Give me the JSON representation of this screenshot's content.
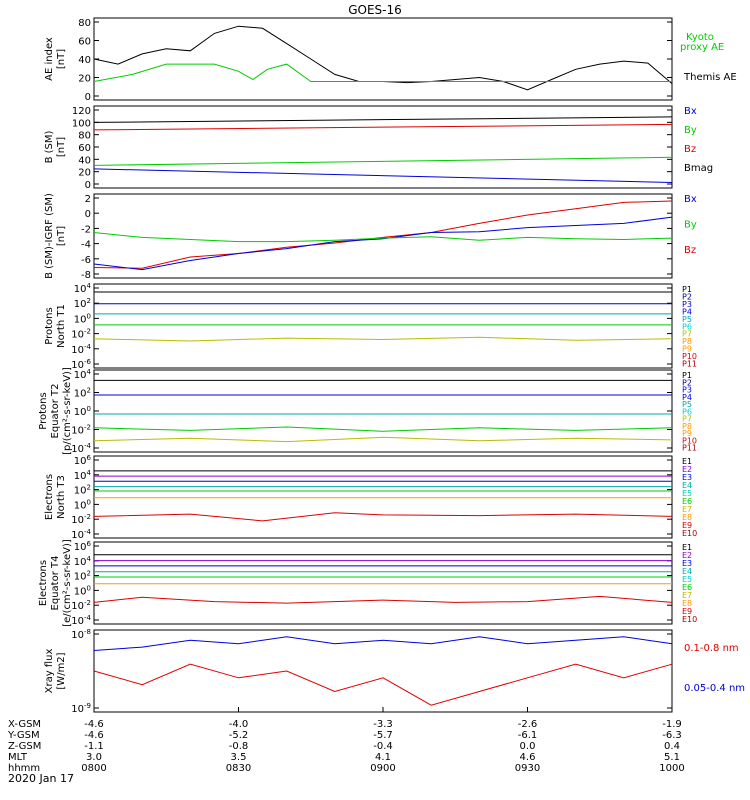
{
  "title": "GOES-16",
  "date": "2020 Jan 17",
  "time_ticks": [
    "0800",
    "0830",
    "0900",
    "0930",
    "1000"
  ],
  "ephemeris": [
    {
      "label": "X-GSM",
      "values": [
        "-4.6",
        "-4.0",
        "-3.3",
        "-2.6",
        "-1.9"
      ]
    },
    {
      "label": "Y-GSM",
      "values": [
        "-4.6",
        "-5.2",
        "-5.7",
        "-6.1",
        "-6.3"
      ]
    },
    {
      "label": "Z-GSM",
      "values": [
        "-1.1",
        "-0.8",
        "-0.4",
        "0.0",
        "0.4"
      ]
    },
    {
      "label": "MLT",
      "values": [
        "3.0",
        "3.5",
        "4.1",
        "4.6",
        "5.1"
      ]
    },
    {
      "label": "hhmm",
      "values": [
        "0800",
        "0830",
        "0900",
        "0930",
        "1000"
      ]
    }
  ],
  "colors": {
    "black": "#000000",
    "blue": "#0000dd",
    "green": "#00cc00",
    "red": "#dd0000",
    "teal": "#00aaaa",
    "navy": "#000088",
    "yellow": "#bbbb00",
    "orange": "#ff9900",
    "purple": "#8800cc",
    "cyan": "#00cccc",
    "darkred": "#aa0000"
  },
  "chart_data": [
    {
      "type": "line",
      "id": "ae",
      "ylabel": [
        "AE index",
        "[nT]"
      ],
      "yticks": [
        "80",
        "60",
        "40",
        "20",
        "0"
      ],
      "ylim": [
        0,
        80
      ],
      "legend": [
        "Kyoto",
        "proxy AE",
        "Themis AE"
      ],
      "series": [
        {
          "name": "Themis AE",
          "color": "#000000",
          "x": [
            0,
            5,
            10,
            15,
            20,
            25,
            30,
            35,
            40,
            45,
            50,
            55,
            60,
            65,
            70,
            75,
            80,
            85,
            90,
            95,
            100,
            105,
            110,
            115,
            120
          ],
          "values": [
            40,
            35,
            45,
            50,
            48,
            65,
            72,
            70,
            55,
            40,
            25,
            18,
            18,
            17,
            18,
            20,
            22,
            18,
            10,
            20,
            30,
            35,
            38,
            36,
            16
          ]
        },
        {
          "name": "Kyoto proxy AE",
          "color": "#00cc00",
          "x": [
            0,
            8,
            15,
            25,
            30,
            33,
            36,
            40,
            45,
            120
          ],
          "values": [
            18,
            25,
            35,
            35,
            28,
            20,
            30,
            35,
            18,
            18
          ]
        }
      ]
    },
    {
      "type": "line",
      "id": "bsm",
      "ylabel": [
        "B (SM)",
        "[nT]"
      ],
      "yticks": [
        "120",
        "100",
        "80",
        "60",
        "40",
        "20",
        "0"
      ],
      "ylim": [
        0,
        120
      ],
      "legend": [
        "Bx",
        "By",
        "Bz",
        "Bmag"
      ],
      "series": [
        {
          "name": "Bmag",
          "color": "#000000",
          "x": [
            0,
            120
          ],
          "values": [
            96,
            104
          ]
        },
        {
          "name": "Bz",
          "color": "#dd0000",
          "x": [
            0,
            120
          ],
          "values": [
            85,
            93
          ]
        },
        {
          "name": "By",
          "color": "#00cc00",
          "x": [
            0,
            120
          ],
          "values": [
            33,
            45
          ]
        },
        {
          "name": "Bx",
          "color": "#0000dd",
          "x": [
            0,
            120
          ],
          "values": [
            28,
            8
          ]
        }
      ]
    },
    {
      "type": "line",
      "id": "bigrf",
      "ylabel": [
        "B (SM)-IGRF (SM)",
        "[nT]"
      ],
      "yticks": [
        "2",
        "0",
        "-2",
        "-4",
        "-6",
        "-8"
      ],
      "ylim": [
        -9,
        3
      ],
      "legend": [
        "Bx",
        "By",
        "Bz"
      ],
      "series": [
        {
          "name": "Bz",
          "color": "#dd0000",
          "x": [
            0,
            10,
            20,
            30,
            40,
            50,
            60,
            70,
            80,
            90,
            100,
            110,
            120
          ],
          "values": [
            -7.5,
            -7.6,
            -6,
            -5.5,
            -4.6,
            -4,
            -3.2,
            -2.5,
            -1.2,
            0,
            0.9,
            1.8,
            2
          ]
        },
        {
          "name": "Bx",
          "color": "#0000dd",
          "x": [
            0,
            10,
            20,
            30,
            40,
            50,
            60,
            70,
            80,
            90,
            100,
            110,
            120
          ],
          "values": [
            -7,
            -7.8,
            -6.5,
            -5.5,
            -4.8,
            -3.8,
            -3.4,
            -2.5,
            -2.4,
            -1.8,
            -1.5,
            -1.2,
            -0.3
          ]
        },
        {
          "name": "By",
          "color": "#00cc00",
          "x": [
            0,
            10,
            20,
            30,
            40,
            50,
            60,
            70,
            80,
            90,
            100,
            110,
            120
          ],
          "values": [
            -2.5,
            -3.2,
            -3.5,
            -3.8,
            -3.8,
            -3.6,
            -3.3,
            -3.1,
            -3.6,
            -3.2,
            -3.4,
            -3.5,
            -3.3
          ]
        }
      ]
    },
    {
      "type": "line",
      "id": "pn",
      "ylabel": [
        "Protons",
        "North T1"
      ],
      "yticks": [
        "10^4",
        "10^2",
        "10^0",
        "10^-2",
        "10^-4",
        "10^-6"
      ],
      "ylim": [
        -7,
        4.5
      ],
      "log": true,
      "legend": [
        "P1",
        "P2",
        "P3",
        "P4",
        "P5",
        "P6",
        "P7",
        "P8",
        "P9",
        "P10",
        "P11"
      ],
      "legend_colors": [
        "#000000",
        "#000088",
        "#0000dd",
        "#0000dd",
        "#00aaaa",
        "#00cccc",
        "#bbbb00",
        "#ff9900",
        "#ff9900",
        "#dd0000",
        "#aa0000"
      ],
      "series": [
        {
          "name": "P1",
          "color": "#000000",
          "x": [
            0,
            120
          ],
          "values": [
            3.4,
            3.4
          ]
        },
        {
          "name": "P3",
          "color": "#0000dd",
          "x": [
            0,
            120
          ],
          "values": [
            1.8,
            1.8
          ]
        },
        {
          "name": "P5",
          "color": "#00aaaa",
          "x": [
            0,
            120
          ],
          "values": [
            0.4,
            0.4
          ]
        },
        {
          "name": "P6",
          "color": "#00cc00",
          "x": [
            0,
            120
          ],
          "values": [
            -1.1,
            -1.1
          ]
        },
        {
          "name": "P7",
          "color": "#bbbb00",
          "x": [
            0,
            20,
            40,
            60,
            80,
            100,
            120
          ],
          "values": [
            -3,
            -3.3,
            -2.9,
            -3.1,
            -2.8,
            -3.2,
            -3
          ]
        }
      ]
    },
    {
      "type": "line",
      "id": "pe",
      "ylabel": [
        "Protons",
        "Equator T2",
        "[p/(cm²-s-sr-keV)]"
      ],
      "yticks": [
        "10^4",
        "10^2",
        "10^0",
        "10^-2",
        "10^-4"
      ],
      "ylim": [
        -5,
        4.5
      ],
      "log": true,
      "legend": [
        "P1",
        "P2",
        "P3",
        "P4",
        "P5",
        "P6",
        "P7",
        "P8",
        "P9",
        "P10",
        "P11"
      ],
      "legend_colors": [
        "#000000",
        "#000088",
        "#0000dd",
        "#0000dd",
        "#00aaaa",
        "#00cccc",
        "#bbbb00",
        "#ff9900",
        "#ff9900",
        "#dd0000",
        "#aa0000"
      ],
      "series": [
        {
          "name": "P1",
          "color": "#000000",
          "x": [
            0,
            120
          ],
          "values": [
            3.3,
            3.3
          ]
        },
        {
          "name": "P3",
          "color": "#0000dd",
          "x": [
            0,
            120
          ],
          "values": [
            1.6,
            1.6
          ]
        },
        {
          "name": "P5",
          "color": "#00aaaa",
          "x": [
            0,
            120
          ],
          "values": [
            -0.6,
            -0.6
          ]
        },
        {
          "name": "P6",
          "color": "#00cc00",
          "x": [
            0,
            20,
            40,
            60,
            80,
            100,
            120
          ],
          "values": [
            -2.2,
            -2.5,
            -2.1,
            -2.6,
            -2.2,
            -2.5,
            -2.2
          ]
        },
        {
          "name": "P7",
          "color": "#bbbb00",
          "x": [
            0,
            20,
            40,
            60,
            80,
            100,
            120
          ],
          "values": [
            -3.7,
            -3.4,
            -3.8,
            -3.3,
            -3.7,
            -3.4,
            -3.6
          ]
        }
      ]
    },
    {
      "type": "line",
      "id": "en",
      "ylabel": [
        "Electrons",
        "North T3"
      ],
      "yticks": [
        "10^6",
        "10^4",
        "10^2",
        "10^0",
        "10^-2",
        "10^-4"
      ],
      "ylim": [
        -4.5,
        6.5
      ],
      "log": true,
      "legend": [
        "E1",
        "E2",
        "E3",
        "E4",
        "E5",
        "E6",
        "E7",
        "E8",
        "E9",
        "E10"
      ],
      "legend_colors": [
        "#000000",
        "#8800cc",
        "#0000dd",
        "#00aaaa",
        "#00cccc",
        "#00cc00",
        "#bbbb00",
        "#ff9900",
        "#dd0000",
        "#aa0000"
      ],
      "series": [
        {
          "name": "E1",
          "color": "#000000",
          "x": [
            0,
            120
          ],
          "values": [
            4.5,
            4.5
          ]
        },
        {
          "name": "E2",
          "color": "#8800cc",
          "x": [
            0,
            120
          ],
          "values": [
            3.8,
            3.8
          ]
        },
        {
          "name": "E3",
          "color": "#0000dd",
          "x": [
            0,
            120
          ],
          "values": [
            3.1,
            3.1
          ]
        },
        {
          "name": "E4",
          "color": "#00aaaa",
          "x": [
            0,
            120
          ],
          "values": [
            2.4,
            2.4
          ]
        },
        {
          "name": "E5",
          "color": "#00cc00",
          "x": [
            0,
            120
          ],
          "values": [
            1.8,
            1.8
          ]
        },
        {
          "name": "E6",
          "color": "#ff9900",
          "x": [
            0,
            120
          ],
          "values": [
            0.9,
            0.9
          ]
        },
        {
          "name": "E9",
          "color": "#dd0000",
          "x": [
            0,
            20,
            35,
            50,
            60,
            80,
            100,
            120
          ],
          "values": [
            -1.6,
            -1.3,
            -2.2,
            -1.1,
            -1.4,
            -1.5,
            -1.3,
            -1.6
          ]
        }
      ]
    },
    {
      "type": "line",
      "id": "ee",
      "ylabel": [
        "Electrons",
        "Equator T4",
        "[e/(cm²-s-sr-keV)]"
      ],
      "yticks": [
        "10^6",
        "10^4",
        "10^2",
        "10^0",
        "10^-2",
        "10^-4"
      ],
      "ylim": [
        -4.5,
        6.5
      ],
      "log": true,
      "legend": [
        "E1",
        "E2",
        "E3",
        "E4",
        "E5",
        "E6",
        "E7",
        "E8",
        "E9",
        "E10"
      ],
      "legend_colors": [
        "#000000",
        "#8800cc",
        "#0000dd",
        "#00aaaa",
        "#00cccc",
        "#00cc00",
        "#bbbb00",
        "#ff9900",
        "#dd0000",
        "#aa0000"
      ],
      "series": [
        {
          "name": "E1",
          "color": "#000000",
          "x": [
            0,
            120
          ],
          "values": [
            4.8,
            4.8
          ]
        },
        {
          "name": "E2",
          "color": "#8800cc",
          "x": [
            0,
            120
          ],
          "values": [
            4.0,
            4.0
          ]
        },
        {
          "name": "E3",
          "color": "#0000dd",
          "x": [
            0,
            120
          ],
          "values": [
            3.3,
            3.3
          ]
        },
        {
          "name": "E4",
          "color": "#00aaaa",
          "x": [
            0,
            120
          ],
          "values": [
            2.5,
            2.5
          ]
        },
        {
          "name": "E5",
          "color": "#00cc00",
          "x": [
            0,
            120
          ],
          "values": [
            1.8,
            1.8
          ]
        },
        {
          "name": "E6",
          "color": "#ff9900",
          "x": [
            0,
            120
          ],
          "values": [
            0.9,
            0.9
          ]
        },
        {
          "name": "E9",
          "color": "#dd0000",
          "x": [
            0,
            10,
            25,
            40,
            60,
            75,
            90,
            105,
            120
          ],
          "values": [
            -1.6,
            -0.9,
            -1.5,
            -1.7,
            -1.3,
            -1.6,
            -1.5,
            -0.8,
            -1.6
          ]
        }
      ]
    },
    {
      "type": "line",
      "id": "xray",
      "ylabel": [
        "Xray flux",
        "[W/m2]"
      ],
      "yticks": [
        "10^-8",
        "10^-9"
      ],
      "ylim": [
        -9.1,
        -7.9
      ],
      "log": true,
      "legend": [
        "0.1-0.8 nm",
        "0.05-0.4 nm"
      ],
      "legend_colors": [
        "#dd0000",
        "#0000dd"
      ],
      "series": [
        {
          "name": "0.05-0.4 nm",
          "color": "#0000dd",
          "x": [
            0,
            10,
            20,
            30,
            40,
            50,
            60,
            70,
            80,
            90,
            100,
            110,
            120
          ],
          "values": [
            -8.2,
            -8.15,
            -8.05,
            -8.1,
            -8.0,
            -8.1,
            -8.05,
            -8.1,
            -8.0,
            -8.1,
            -8.05,
            -8.0,
            -8.1
          ]
        },
        {
          "name": "0.1-0.8 nm",
          "color": "#dd0000",
          "x": [
            0,
            10,
            20,
            30,
            40,
            50,
            60,
            70,
            80,
            90,
            100,
            110,
            120
          ],
          "values": [
            -8.5,
            -8.7,
            -8.4,
            -8.6,
            -8.5,
            -8.8,
            -8.6,
            -9.0,
            -8.8,
            -8.6,
            -8.4,
            -8.6,
            -8.4
          ]
        }
      ]
    }
  ]
}
